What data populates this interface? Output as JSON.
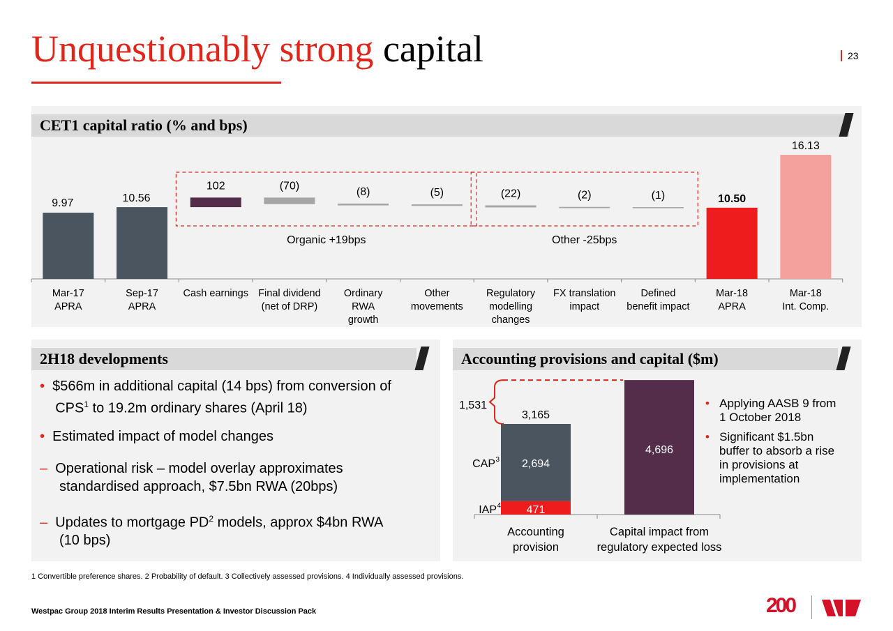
{
  "header": {
    "title_red": "Unquestionably strong",
    "title_black": "capital",
    "page_number": "23"
  },
  "panel1": {
    "title": "CET1 capital ratio (% and bps)"
  },
  "panel2": {
    "title": "2H18 developments",
    "bullets": [
      {
        "type": "bullet",
        "text": "$566m in additional capital (14 bps) from conversion of",
        "line2_pre": "CPS",
        "sup": "1",
        "line2_post": " to 19.2m ordinary shares (April 18)"
      },
      {
        "type": "bullet",
        "text": "Estimated impact of model changes"
      },
      {
        "type": "dash",
        "text": "Operational risk – model overlay approximates",
        "line2_post": "standardised approach, $7.5bn RWA (20bps)"
      },
      {
        "type": "dash",
        "text": "Updates to mortgage PD",
        "sup": "2",
        "text_post": " models, approx $4bn RWA",
        "line2_post": "(10 bps)"
      }
    ]
  },
  "panel3": {
    "title": "Accounting provisions and capital ($m)",
    "bullets": [
      {
        "line1": "Applying AASB 9 from",
        "line2": "1 October 2018"
      },
      {
        "line1": "Significant $1.5bn",
        "line2": "buffer to absorb a rise",
        "line3": "in provisions at",
        "line4": "implementation"
      }
    ]
  },
  "chart_data": [
    {
      "type": "waterfall",
      "title": "CET1 capital ratio (% and bps)",
      "ylim": [
        2.92,
        16.5
      ],
      "categories": [
        [
          "Mar-17",
          "APRA"
        ],
        [
          "Sep-17",
          "APRA"
        ],
        [
          "Cash earnings"
        ],
        [
          "Final dividend",
          "(net of DRP)"
        ],
        [
          "Ordinary",
          "RWA",
          "growth"
        ],
        [
          "Other",
          "movements"
        ],
        [
          "Regulatory",
          "modelling",
          "changes"
        ],
        [
          "FX translation",
          "impact"
        ],
        [
          "Defined",
          "benefit impact"
        ],
        [
          "Mar-18",
          "APRA"
        ],
        [
          "Mar-18",
          "Int. Comp."
        ]
      ],
      "bars": [
        {
          "kind": "total",
          "value": 9.97,
          "label": "9.97",
          "color": "#4a5560"
        },
        {
          "kind": "total",
          "value": 10.56,
          "label": "10.56",
          "color": "#4a5560"
        },
        {
          "kind": "delta",
          "bps": 102,
          "label": "102",
          "color": "#532d4a"
        },
        {
          "kind": "delta",
          "bps": -70,
          "label": "(70)",
          "color": "#a6a6a6"
        },
        {
          "kind": "delta",
          "bps": -8,
          "label": "(8)",
          "color": "#a6a6a6"
        },
        {
          "kind": "delta",
          "bps": -5,
          "label": "(5)",
          "color": "#a6a6a6"
        },
        {
          "kind": "delta",
          "bps": -22,
          "label": "(22)",
          "color": "#a6a6a6"
        },
        {
          "kind": "delta",
          "bps": -2,
          "label": "(2)",
          "color": "#a6a6a6"
        },
        {
          "kind": "delta",
          "bps": -1,
          "label": "(1)",
          "color": "#a6a6a6"
        },
        {
          "kind": "total",
          "value": 10.5,
          "label": "10.50",
          "color": "#ee1c1c",
          "bold": true
        },
        {
          "kind": "total",
          "value": 16.13,
          "label": "16.13",
          "color": "#f4a09c"
        }
      ],
      "groups": [
        {
          "label": "Organic +19bps",
          "from": 2,
          "to": 5
        },
        {
          "label": "Other -25bps",
          "from": 6,
          "to": 8
        }
      ]
    },
    {
      "type": "stacked-bar",
      "ylim": [
        0,
        4800
      ],
      "categories": [
        [
          "Accounting",
          "provision"
        ],
        [
          "Capital impact from",
          "regulatory expected loss"
        ]
      ],
      "series": [
        {
          "name": "IAP",
          "sup": "4",
          "values": [
            471,
            null
          ],
          "color": "#ee1c1c"
        },
        {
          "name": "CAP",
          "sup": "3",
          "values": [
            2694,
            null
          ],
          "color": "#4a5560"
        },
        {
          "name": "",
          "values": [
            null,
            4696
          ],
          "color": "#532d4a"
        }
      ],
      "totals": [
        "3,165",
        ""
      ],
      "value_labels": [
        [
          "471",
          "2,694"
        ],
        [
          "4,696"
        ]
      ],
      "gap_label": "1,531"
    }
  ],
  "footnote": "1 Convertible preference shares. 2 Probability of default. 3 Collectively assessed provisions. 4 Individually assessed provisions.",
  "footer": {
    "text": "Westpac Group 2018 Interim Results Presentation & Investor Discussion Pack",
    "logo_text": "200"
  },
  "colors": {
    "accent": "#e0251b",
    "slate": "#4a5560",
    "plum": "#532d4a"
  }
}
